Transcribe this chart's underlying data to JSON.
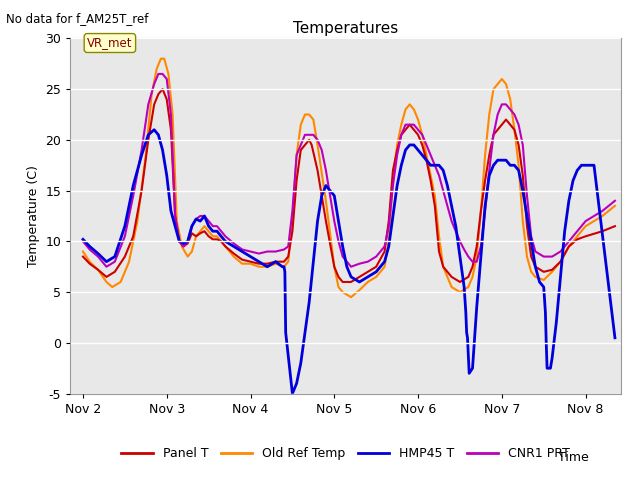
{
  "title": "Temperatures",
  "ylabel": "Temperature (C)",
  "xlabel": "Time",
  "note": "No data for f_AM25T_ref",
  "vr_met_label": "VR_met",
  "ylim": [
    -5,
    30
  ],
  "yticks": [
    -5,
    0,
    5,
    10,
    15,
    20,
    25,
    30
  ],
  "xtick_labels": [
    "Nov 2",
    "Nov 3",
    "Nov 4",
    "Nov 5",
    "Nov 6",
    "Nov 7",
    "Nov 8"
  ],
  "xtick_positions": [
    2,
    3,
    4,
    5,
    6,
    7,
    8
  ],
  "xlim": [
    1.85,
    8.42
  ],
  "plot_bg_color": "#e8e8e8",
  "legend_entries": [
    "Panel T",
    "Old Ref Temp",
    "HMP45 T",
    "CNR1 PRT"
  ],
  "line_colors": [
    "#cc0000",
    "#ff8800",
    "#0000dd",
    "#bb00bb"
  ],
  "panel_t": [
    [
      2.0,
      8.5
    ],
    [
      2.08,
      7.8
    ],
    [
      2.18,
      7.2
    ],
    [
      2.28,
      6.5
    ],
    [
      2.38,
      7.0
    ],
    [
      2.5,
      8.5
    ],
    [
      2.6,
      10.5
    ],
    [
      2.7,
      15.0
    ],
    [
      2.78,
      20.0
    ],
    [
      2.85,
      23.5
    ],
    [
      2.9,
      24.5
    ],
    [
      2.95,
      25.0
    ],
    [
      3.0,
      24.0
    ],
    [
      3.05,
      21.0
    ],
    [
      3.1,
      12.5
    ],
    [
      3.15,
      10.0
    ],
    [
      3.2,
      9.5
    ],
    [
      3.25,
      9.8
    ],
    [
      3.3,
      10.8
    ],
    [
      3.35,
      10.5
    ],
    [
      3.4,
      10.8
    ],
    [
      3.45,
      11.0
    ],
    [
      3.5,
      10.5
    ],
    [
      3.55,
      10.2
    ],
    [
      3.6,
      10.2
    ],
    [
      3.65,
      10.0
    ],
    [
      3.7,
      9.5
    ],
    [
      3.8,
      8.8
    ],
    [
      3.9,
      8.2
    ],
    [
      4.0,
      8.0
    ],
    [
      4.1,
      7.8
    ],
    [
      4.2,
      7.8
    ],
    [
      4.3,
      8.0
    ],
    [
      4.4,
      8.0
    ],
    [
      4.45,
      8.5
    ],
    [
      4.5,
      11.0
    ],
    [
      4.55,
      16.0
    ],
    [
      4.6,
      19.0
    ],
    [
      4.65,
      19.5
    ],
    [
      4.7,
      20.0
    ],
    [
      4.73,
      19.5
    ],
    [
      4.8,
      17.0
    ],
    [
      4.9,
      12.0
    ],
    [
      5.0,
      7.5
    ],
    [
      5.05,
      6.5
    ],
    [
      5.1,
      6.0
    ],
    [
      5.2,
      6.0
    ],
    [
      5.3,
      6.5
    ],
    [
      5.4,
      7.0
    ],
    [
      5.5,
      7.5
    ],
    [
      5.6,
      9.0
    ],
    [
      5.65,
      12.0
    ],
    [
      5.7,
      17.0
    ],
    [
      5.75,
      19.0
    ],
    [
      5.8,
      20.5
    ],
    [
      5.85,
      21.0
    ],
    [
      5.9,
      21.5
    ],
    [
      5.95,
      21.0
    ],
    [
      6.0,
      20.5
    ],
    [
      6.05,
      19.5
    ],
    [
      6.1,
      18.0
    ],
    [
      6.15,
      16.0
    ],
    [
      6.2,
      13.5
    ],
    [
      6.25,
      9.0
    ],
    [
      6.3,
      7.5
    ],
    [
      6.4,
      6.5
    ],
    [
      6.5,
      6.0
    ],
    [
      6.6,
      6.5
    ],
    [
      6.65,
      7.5
    ],
    [
      6.7,
      9.5
    ],
    [
      6.75,
      13.0
    ],
    [
      6.8,
      16.0
    ],
    [
      6.85,
      18.5
    ],
    [
      6.9,
      20.5
    ],
    [
      6.95,
      21.0
    ],
    [
      7.0,
      21.5
    ],
    [
      7.05,
      22.0
    ],
    [
      7.1,
      21.5
    ],
    [
      7.15,
      21.0
    ],
    [
      7.2,
      19.5
    ],
    [
      7.25,
      16.5
    ],
    [
      7.3,
      11.5
    ],
    [
      7.35,
      8.5
    ],
    [
      7.4,
      7.5
    ],
    [
      7.5,
      7.0
    ],
    [
      7.6,
      7.2
    ],
    [
      7.7,
      8.0
    ],
    [
      7.8,
      9.5
    ],
    [
      7.9,
      10.2
    ],
    [
      8.0,
      10.5
    ],
    [
      8.2,
      11.0
    ],
    [
      8.35,
      11.5
    ]
  ],
  "old_ref_t": [
    [
      2.0,
      9.0
    ],
    [
      2.08,
      8.0
    ],
    [
      2.18,
      7.2
    ],
    [
      2.28,
      6.0
    ],
    [
      2.35,
      5.5
    ],
    [
      2.45,
      6.0
    ],
    [
      2.55,
      8.0
    ],
    [
      2.65,
      12.0
    ],
    [
      2.75,
      18.5
    ],
    [
      2.82,
      24.5
    ],
    [
      2.88,
      27.0
    ],
    [
      2.93,
      28.0
    ],
    [
      2.97,
      28.0
    ],
    [
      3.02,
      26.5
    ],
    [
      3.07,
      22.5
    ],
    [
      3.12,
      12.0
    ],
    [
      3.18,
      9.5
    ],
    [
      3.25,
      8.5
    ],
    [
      3.3,
      9.0
    ],
    [
      3.35,
      10.5
    ],
    [
      3.4,
      11.0
    ],
    [
      3.45,
      11.5
    ],
    [
      3.5,
      11.0
    ],
    [
      3.55,
      10.5
    ],
    [
      3.6,
      10.5
    ],
    [
      3.65,
      10.0
    ],
    [
      3.7,
      9.5
    ],
    [
      3.8,
      8.5
    ],
    [
      3.9,
      7.8
    ],
    [
      4.0,
      7.8
    ],
    [
      4.1,
      7.5
    ],
    [
      4.2,
      7.5
    ],
    [
      4.3,
      7.8
    ],
    [
      4.4,
      7.5
    ],
    [
      4.45,
      8.0
    ],
    [
      4.5,
      12.0
    ],
    [
      4.55,
      18.5
    ],
    [
      4.6,
      21.5
    ],
    [
      4.65,
      22.5
    ],
    [
      4.7,
      22.5
    ],
    [
      4.75,
      22.0
    ],
    [
      4.8,
      19.5
    ],
    [
      4.9,
      14.0
    ],
    [
      5.0,
      7.5
    ],
    [
      5.05,
      5.5
    ],
    [
      5.1,
      5.0
    ],
    [
      5.2,
      4.5
    ],
    [
      5.3,
      5.2
    ],
    [
      5.4,
      6.0
    ],
    [
      5.5,
      6.5
    ],
    [
      5.6,
      7.5
    ],
    [
      5.65,
      10.0
    ],
    [
      5.7,
      16.0
    ],
    [
      5.75,
      19.5
    ],
    [
      5.8,
      21.5
    ],
    [
      5.85,
      23.0
    ],
    [
      5.9,
      23.5
    ],
    [
      5.95,
      23.0
    ],
    [
      6.0,
      22.0
    ],
    [
      6.05,
      20.5
    ],
    [
      6.1,
      18.5
    ],
    [
      6.15,
      16.5
    ],
    [
      6.2,
      14.5
    ],
    [
      6.25,
      10.5
    ],
    [
      6.3,
      7.5
    ],
    [
      6.4,
      5.5
    ],
    [
      6.5,
      5.0
    ],
    [
      6.6,
      5.5
    ],
    [
      6.65,
      6.5
    ],
    [
      6.7,
      8.5
    ],
    [
      6.75,
      13.0
    ],
    [
      6.8,
      18.5
    ],
    [
      6.85,
      22.5
    ],
    [
      6.9,
      25.0
    ],
    [
      6.95,
      25.5
    ],
    [
      7.0,
      26.0
    ],
    [
      7.05,
      25.5
    ],
    [
      7.1,
      24.0
    ],
    [
      7.15,
      21.0
    ],
    [
      7.2,
      17.5
    ],
    [
      7.25,
      12.0
    ],
    [
      7.3,
      8.5
    ],
    [
      7.35,
      7.0
    ],
    [
      7.4,
      6.5
    ],
    [
      7.5,
      6.2
    ],
    [
      7.6,
      7.0
    ],
    [
      7.7,
      8.0
    ],
    [
      7.8,
      9.5
    ],
    [
      7.9,
      10.5
    ],
    [
      8.0,
      11.5
    ],
    [
      8.2,
      12.5
    ],
    [
      8.35,
      13.5
    ]
  ],
  "hmp45_t": [
    [
      2.0,
      10.2
    ],
    [
      2.08,
      9.5
    ],
    [
      2.18,
      8.8
    ],
    [
      2.28,
      8.0
    ],
    [
      2.38,
      8.5
    ],
    [
      2.5,
      11.5
    ],
    [
      2.6,
      15.5
    ],
    [
      2.7,
      18.5
    ],
    [
      2.78,
      20.5
    ],
    [
      2.85,
      21.0
    ],
    [
      2.9,
      20.5
    ],
    [
      2.95,
      19.0
    ],
    [
      3.0,
      16.5
    ],
    [
      3.05,
      13.0
    ],
    [
      3.1,
      11.5
    ],
    [
      3.15,
      10.0
    ],
    [
      3.2,
      9.8
    ],
    [
      3.25,
      10.0
    ],
    [
      3.3,
      11.5
    ],
    [
      3.35,
      12.2
    ],
    [
      3.4,
      12.0
    ],
    [
      3.45,
      12.5
    ],
    [
      3.5,
      11.5
    ],
    [
      3.55,
      11.0
    ],
    [
      3.6,
      11.0
    ],
    [
      3.65,
      10.5
    ],
    [
      3.7,
      10.0
    ],
    [
      3.8,
      9.5
    ],
    [
      3.9,
      9.0
    ],
    [
      4.0,
      8.5
    ],
    [
      4.1,
      8.0
    ],
    [
      4.2,
      7.5
    ],
    [
      4.3,
      8.0
    ],
    [
      4.38,
      7.5
    ],
    [
      4.4,
      7.5
    ],
    [
      4.41,
      7.0
    ],
    [
      4.42,
      1.0
    ],
    [
      4.5,
      -5.0
    ],
    [
      4.55,
      -4.0
    ],
    [
      4.6,
      -2.0
    ],
    [
      4.65,
      1.0
    ],
    [
      4.7,
      4.0
    ],
    [
      4.75,
      8.0
    ],
    [
      4.8,
      12.0
    ],
    [
      4.85,
      14.5
    ],
    [
      4.9,
      15.5
    ],
    [
      4.95,
      15.0
    ],
    [
      5.0,
      14.5
    ],
    [
      5.03,
      13.0
    ],
    [
      5.1,
      9.5
    ],
    [
      5.15,
      7.5
    ],
    [
      5.2,
      6.5
    ],
    [
      5.3,
      6.0
    ],
    [
      5.4,
      6.5
    ],
    [
      5.5,
      7.0
    ],
    [
      5.6,
      8.0
    ],
    [
      5.65,
      9.5
    ],
    [
      5.7,
      12.5
    ],
    [
      5.75,
      15.5
    ],
    [
      5.8,
      17.5
    ],
    [
      5.85,
      19.0
    ],
    [
      5.9,
      19.5
    ],
    [
      5.95,
      19.5
    ],
    [
      6.0,
      19.0
    ],
    [
      6.05,
      18.5
    ],
    [
      6.1,
      18.0
    ],
    [
      6.15,
      17.5
    ],
    [
      6.2,
      17.5
    ],
    [
      6.25,
      17.5
    ],
    [
      6.3,
      17.0
    ],
    [
      6.35,
      15.5
    ],
    [
      6.4,
      13.5
    ],
    [
      6.45,
      11.5
    ],
    [
      6.5,
      8.5
    ],
    [
      6.55,
      5.5
    ],
    [
      6.57,
      3.0
    ],
    [
      6.58,
      1.0
    ],
    [
      6.59,
      0.5
    ],
    [
      6.61,
      -3.0
    ],
    [
      6.65,
      -2.5
    ],
    [
      6.7,
      3.5
    ],
    [
      6.75,
      8.5
    ],
    [
      6.8,
      13.5
    ],
    [
      6.85,
      16.5
    ],
    [
      6.9,
      17.5
    ],
    [
      6.95,
      18.0
    ],
    [
      7.0,
      18.0
    ],
    [
      7.05,
      18.0
    ],
    [
      7.1,
      17.5
    ],
    [
      7.15,
      17.5
    ],
    [
      7.2,
      17.0
    ],
    [
      7.25,
      15.0
    ],
    [
      7.3,
      12.5
    ],
    [
      7.35,
      10.0
    ],
    [
      7.4,
      7.5
    ],
    [
      7.45,
      6.0
    ],
    [
      7.5,
      5.5
    ],
    [
      7.52,
      3.0
    ],
    [
      7.53,
      0.0
    ],
    [
      7.54,
      -2.5
    ],
    [
      7.58,
      -2.5
    ],
    [
      7.6,
      -1.5
    ],
    [
      7.65,
      2.0
    ],
    [
      7.7,
      6.5
    ],
    [
      7.75,
      11.0
    ],
    [
      7.8,
      14.0
    ],
    [
      7.85,
      16.0
    ],
    [
      7.9,
      17.0
    ],
    [
      7.95,
      17.5
    ],
    [
      8.0,
      17.5
    ],
    [
      8.1,
      17.5
    ],
    [
      8.35,
      0.5
    ]
  ],
  "cnr1_prt": [
    [
      2.0,
      10.0
    ],
    [
      2.08,
      9.2
    ],
    [
      2.18,
      8.5
    ],
    [
      2.28,
      7.5
    ],
    [
      2.38,
      8.0
    ],
    [
      2.5,
      10.5
    ],
    [
      2.6,
      14.5
    ],
    [
      2.7,
      19.0
    ],
    [
      2.78,
      23.5
    ],
    [
      2.85,
      25.5
    ],
    [
      2.9,
      26.5
    ],
    [
      2.95,
      26.5
    ],
    [
      3.0,
      26.0
    ],
    [
      3.05,
      22.5
    ],
    [
      3.1,
      12.5
    ],
    [
      3.15,
      10.0
    ],
    [
      3.2,
      9.5
    ],
    [
      3.25,
      10.0
    ],
    [
      3.3,
      11.5
    ],
    [
      3.35,
      12.2
    ],
    [
      3.4,
      12.5
    ],
    [
      3.45,
      12.5
    ],
    [
      3.5,
      12.0
    ],
    [
      3.55,
      11.5
    ],
    [
      3.6,
      11.5
    ],
    [
      3.65,
      11.0
    ],
    [
      3.7,
      10.5
    ],
    [
      3.8,
      9.8
    ],
    [
      3.9,
      9.2
    ],
    [
      4.0,
      9.0
    ],
    [
      4.1,
      8.8
    ],
    [
      4.2,
      9.0
    ],
    [
      4.3,
      9.0
    ],
    [
      4.4,
      9.2
    ],
    [
      4.45,
      9.5
    ],
    [
      4.5,
      13.0
    ],
    [
      4.55,
      18.5
    ],
    [
      4.6,
      19.5
    ],
    [
      4.65,
      20.5
    ],
    [
      4.7,
      20.5
    ],
    [
      4.75,
      20.5
    ],
    [
      4.8,
      20.0
    ],
    [
      4.85,
      19.0
    ],
    [
      4.9,
      17.0
    ],
    [
      4.95,
      14.5
    ],
    [
      5.0,
      12.0
    ],
    [
      5.05,
      10.0
    ],
    [
      5.1,
      8.5
    ],
    [
      5.2,
      7.5
    ],
    [
      5.3,
      7.8
    ],
    [
      5.4,
      8.0
    ],
    [
      5.5,
      8.5
    ],
    [
      5.6,
      9.5
    ],
    [
      5.65,
      11.5
    ],
    [
      5.7,
      15.5
    ],
    [
      5.75,
      18.5
    ],
    [
      5.8,
      20.5
    ],
    [
      5.85,
      21.5
    ],
    [
      5.9,
      21.5
    ],
    [
      5.95,
      21.5
    ],
    [
      6.0,
      21.0
    ],
    [
      6.05,
      20.5
    ],
    [
      6.1,
      19.5
    ],
    [
      6.15,
      18.5
    ],
    [
      6.2,
      17.5
    ],
    [
      6.25,
      16.5
    ],
    [
      6.3,
      15.0
    ],
    [
      6.35,
      13.5
    ],
    [
      6.4,
      12.0
    ],
    [
      6.45,
      11.0
    ],
    [
      6.5,
      10.0
    ],
    [
      6.55,
      9.2
    ],
    [
      6.6,
      8.5
    ],
    [
      6.65,
      8.0
    ],
    [
      6.7,
      8.0
    ],
    [
      6.75,
      9.5
    ],
    [
      6.8,
      13.0
    ],
    [
      6.85,
      17.0
    ],
    [
      6.9,
      20.5
    ],
    [
      6.95,
      22.5
    ],
    [
      7.0,
      23.5
    ],
    [
      7.05,
      23.5
    ],
    [
      7.1,
      23.0
    ],
    [
      7.15,
      22.5
    ],
    [
      7.2,
      21.5
    ],
    [
      7.25,
      19.5
    ],
    [
      7.3,
      14.5
    ],
    [
      7.35,
      10.5
    ],
    [
      7.4,
      9.0
    ],
    [
      7.5,
      8.5
    ],
    [
      7.6,
      8.5
    ],
    [
      7.7,
      9.0
    ],
    [
      7.8,
      10.0
    ],
    [
      7.9,
      11.0
    ],
    [
      8.0,
      12.0
    ],
    [
      8.2,
      13.0
    ],
    [
      8.35,
      14.0
    ]
  ]
}
